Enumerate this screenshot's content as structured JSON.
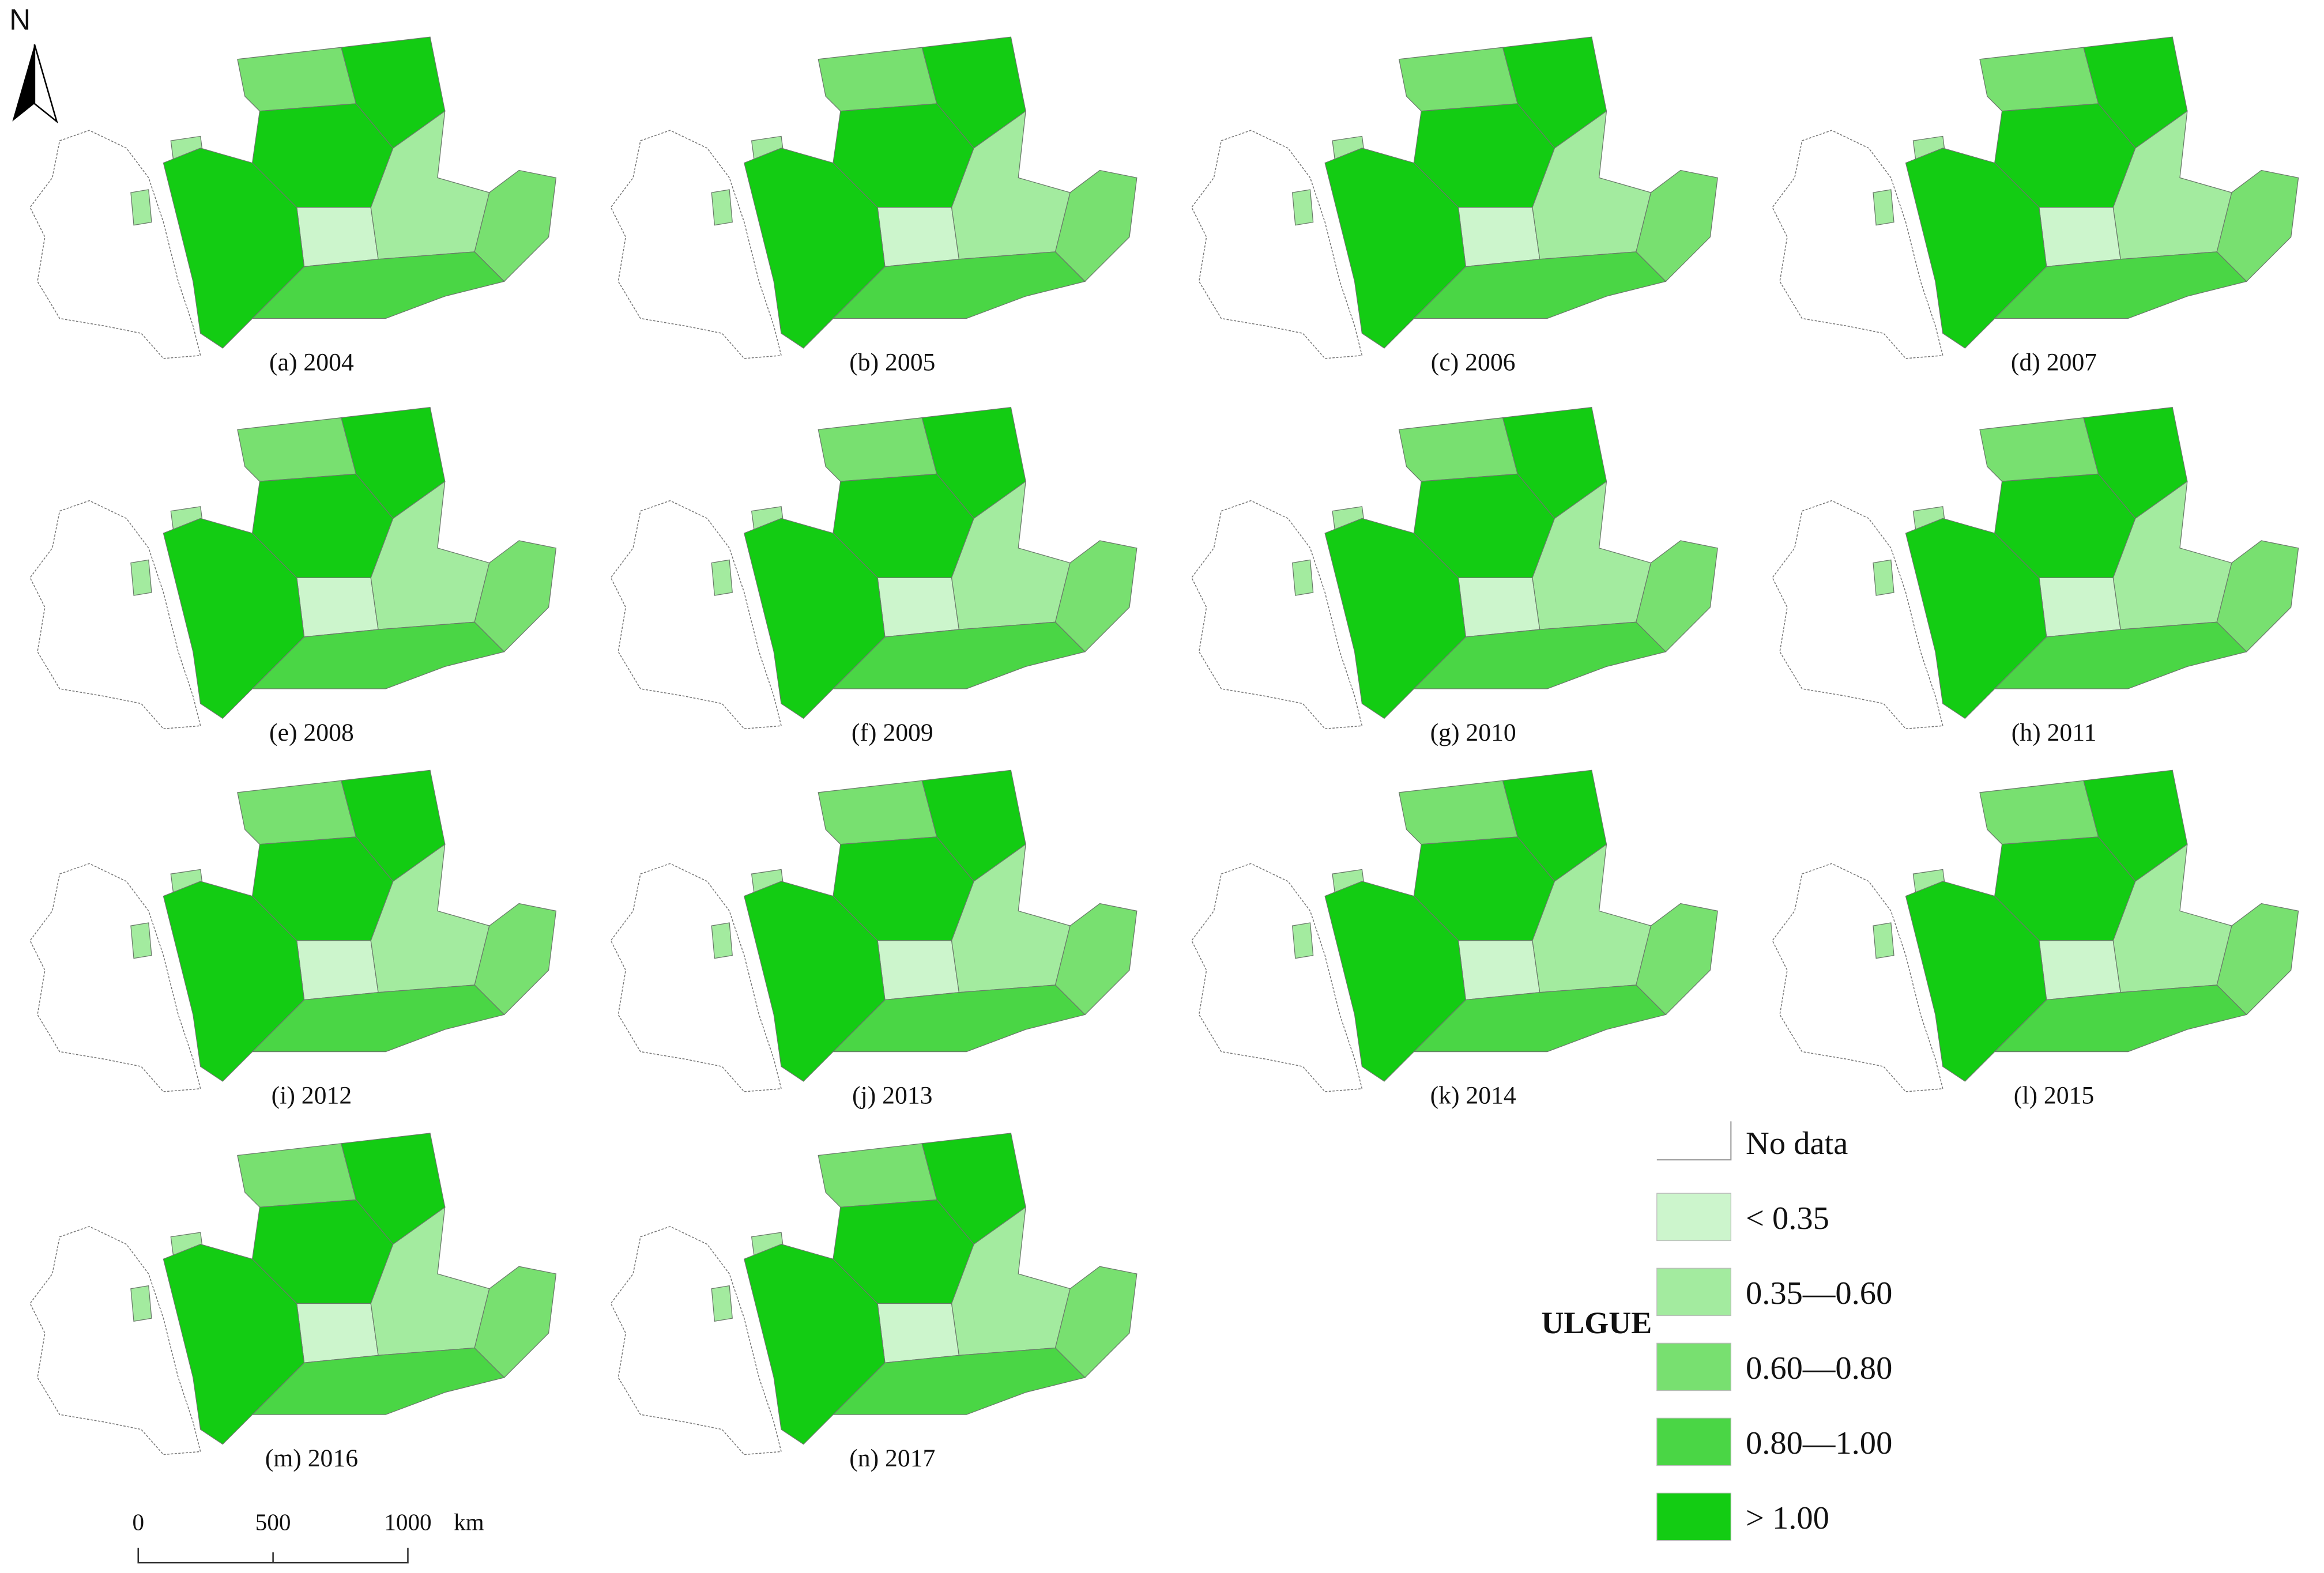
{
  "north": "N",
  "panels": [
    {
      "label": "(a) 2004"
    },
    {
      "label": "(b) 2005"
    },
    {
      "label": "(c) 2006"
    },
    {
      "label": "(d) 2007"
    },
    {
      "label": "(e) 2008"
    },
    {
      "label": "(f) 2009"
    },
    {
      "label": "(g) 2010"
    },
    {
      "label": "(h) 2011"
    },
    {
      "label": "(i) 2012"
    },
    {
      "label": "(j) 2013"
    },
    {
      "label": "(k) 2014"
    },
    {
      "label": "(l) 2015"
    },
    {
      "label": "(m) 2016"
    },
    {
      "label": "(n) 2017"
    }
  ],
  "legend": {
    "title": "ULGUE",
    "items": [
      {
        "label": "No data",
        "color": "#ffffff"
      },
      {
        "label": "< 0.35",
        "color": "#ccf5cc"
      },
      {
        "label": "0.35—0.60",
        "color": "#a3eb9f"
      },
      {
        "label": "0.60—0.80",
        "color": "#78e070"
      },
      {
        "label": "0.80—1.00",
        "color": "#4ad645"
      },
      {
        "label": "> 1.00",
        "color": "#13cc13"
      }
    ]
  },
  "scale_bar": {
    "labels": [
      0,
      500,
      1000
    ],
    "unit": "km"
  }
}
